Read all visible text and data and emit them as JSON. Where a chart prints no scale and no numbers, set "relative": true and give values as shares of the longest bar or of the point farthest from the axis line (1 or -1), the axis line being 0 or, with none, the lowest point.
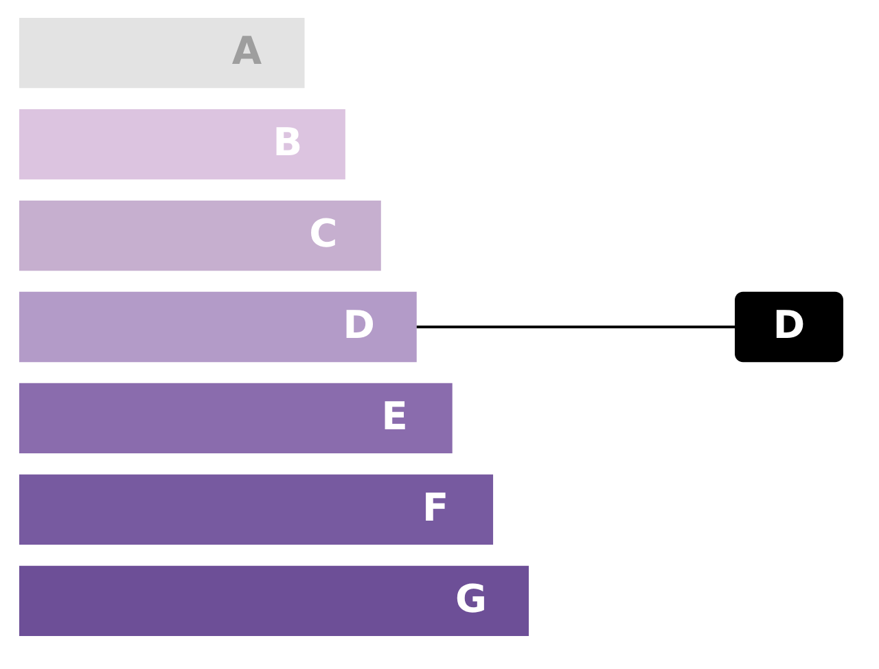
{
  "chart_data": {
    "type": "bar",
    "orientation": "horizontal",
    "relative": true,
    "categories": [
      "A",
      "B",
      "C",
      "D",
      "E",
      "F",
      "G"
    ],
    "values": [
      0.56,
      0.64,
      0.71,
      0.78,
      0.85,
      0.93,
      1
    ],
    "colors": [
      "#e3e3e3",
      "#dcc4e0",
      "#c6afcf",
      "#b39bc8",
      "#8a6cad",
      "#775aa0",
      "#6d4f97"
    ],
    "annotations": [
      {
        "text": "D",
        "x": 0.78,
        "y": "D"
      }
    ]
  }
}
